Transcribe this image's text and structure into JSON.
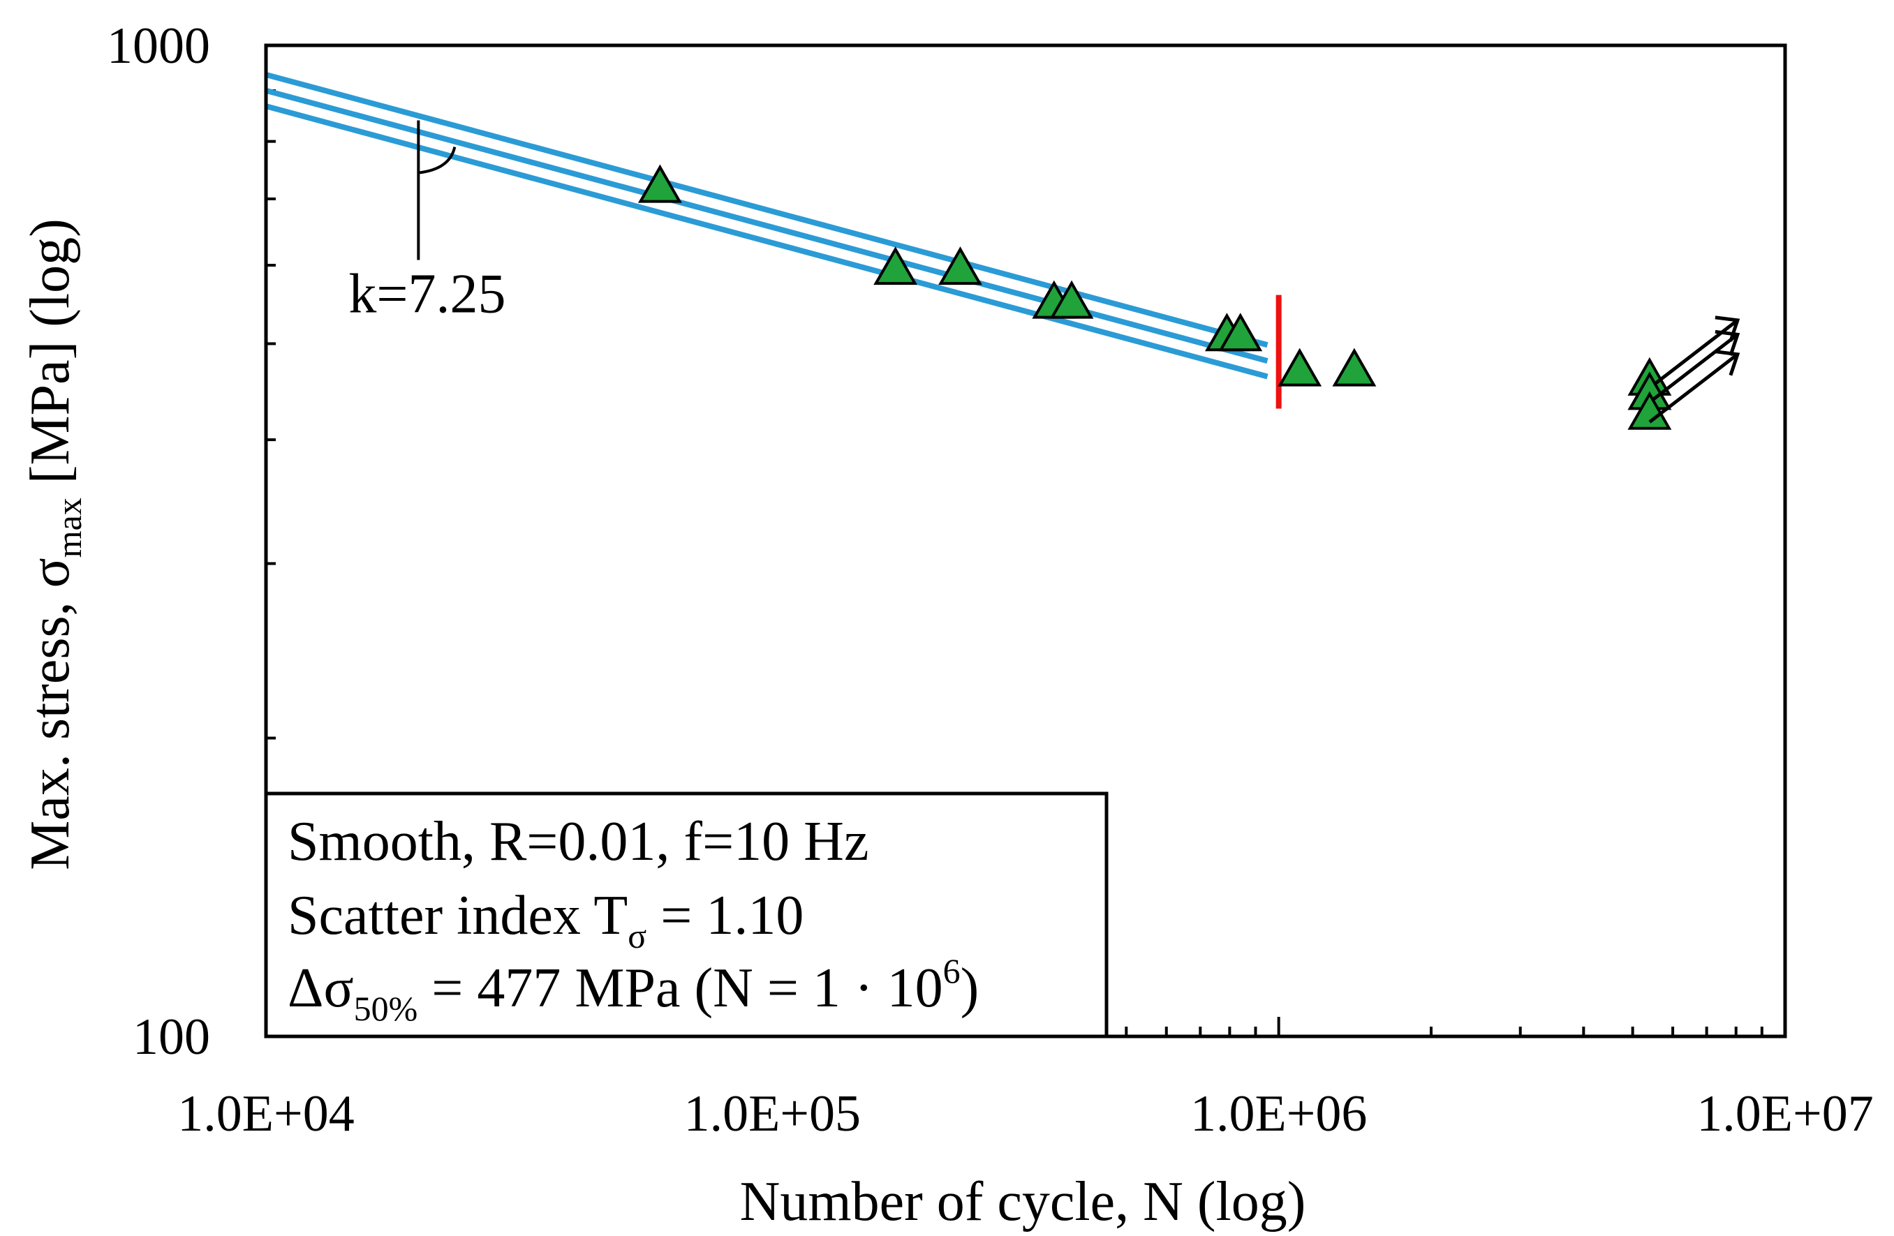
{
  "chart_data": {
    "type": "scatter",
    "x_scale": "log",
    "y_scale": "log",
    "xlim": [
      10000,
      10000000
    ],
    "ylim": [
      100,
      1000
    ],
    "xlabel": "Number of cycle, N (log)",
    "ylabel": {
      "prefix": "Max. stress, σ",
      "subscript": "max",
      "suffix": " [MPa] (log)"
    },
    "x_tick_labels": [
      {
        "value": 10000,
        "label": "1.0E+04"
      },
      {
        "value": 100000,
        "label": "1.0E+05"
      },
      {
        "value": 1000000,
        "label": "1.0E+06"
      },
      {
        "value": 10000000,
        "label": "1.0E+07"
      }
    ],
    "y_tick_labels": [
      {
        "value": 100,
        "label": "100"
      },
      {
        "value": 1000,
        "label": "1000"
      }
    ],
    "failure_points": {
      "marker": "triangle",
      "color": "#1fa33a",
      "points": [
        {
          "x": 60000,
          "y": 720
        },
        {
          "x": 175000,
          "y": 595
        },
        {
          "x": 235000,
          "y": 595
        },
        {
          "x": 360000,
          "y": 550
        },
        {
          "x": 390000,
          "y": 550
        },
        {
          "x": 790000,
          "y": 510
        },
        {
          "x": 840000,
          "y": 510
        },
        {
          "x": 1100000,
          "y": 470
        },
        {
          "x": 1410000,
          "y": 470
        }
      ]
    },
    "runout_points": {
      "marker": "triangle",
      "arrow": "up-right",
      "color": "#1fa33a",
      "points": [
        {
          "x": 5400000,
          "y": 460
        },
        {
          "x": 5400000,
          "y": 445
        },
        {
          "x": 5400000,
          "y": 425
        }
      ]
    },
    "sn_curves": {
      "color": "#2b9bd6",
      "slope_k": 7.25,
      "x_range": [
        10000,
        950000
      ],
      "reference_stress_at_1e6": [
        495,
        477,
        460
      ]
    },
    "knee_line": {
      "x": 1000000,
      "y_range": [
        430,
        560
      ],
      "color": "#ee1111"
    },
    "slope_annotation": {
      "label": "k=7.25",
      "x": 20000,
      "y": 840
    },
    "info_box": {
      "line1": "Smooth, R=0.01, f=10 Hz",
      "line2_prefix": "Scatter index T",
      "line2_sub": "σ",
      "line2_suffix": " = 1.10",
      "line3_prefix": "Δσ",
      "line3_sub": "50%",
      "line3_mid": " = 477 MPa (N = 1 · 10",
      "line3_sup": "6",
      "line3_suffix": ")"
    }
  }
}
